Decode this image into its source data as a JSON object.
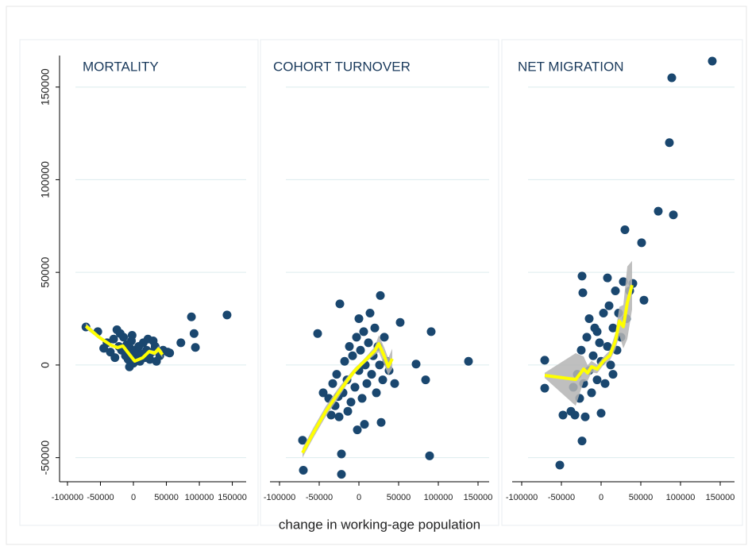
{
  "chart_data": [
    {
      "type": "scatter",
      "title": "MORTALITY",
      "xlim": [
        -112000,
        171000
      ],
      "ylim": [
        -63000,
        167000
      ],
      "xticks": [
        -100000,
        -50000,
        0,
        50000,
        100000,
        150000
      ],
      "yticks": [
        -50000,
        0,
        50000,
        100000,
        150000
      ],
      "grid": true,
      "points": {
        "color": "#1a476f",
        "x": [
          -72000,
          -54000,
          -45000,
          -40000,
          -35000,
          -30000,
          -25000,
          -22000,
          -20000,
          -18000,
          -15000,
          -12000,
          -10000,
          -8000,
          -5000,
          -3000,
          0,
          0,
          3000,
          5000,
          8000,
          10000,
          12000,
          15000,
          18000,
          20000,
          22000,
          25000,
          28000,
          30000,
          33000,
          35000,
          40000,
          45000,
          52000,
          55000,
          72000,
          88000,
          92000,
          94000,
          142000,
          -28000,
          -6000,
          -2000
        ],
        "y": [
          20500,
          18000,
          9000,
          12000,
          7000,
          14000,
          19000,
          10000,
          17000,
          8000,
          15000,
          5000,
          11000,
          3000,
          9000,
          13000,
          6000,
          1000,
          8000,
          3000,
          10000,
          2000,
          6000,
          12000,
          4000,
          8000,
          14000,
          3000,
          7000,
          13000,
          10000,
          2000,
          5000,
          8000,
          7000,
          6500,
          12000,
          26000,
          17000,
          9500,
          27000,
          4000,
          -1000,
          16000
        ]
      },
      "smooth": {
        "color": "#ffff00",
        "band_color": "#b4b4b4",
        "x": [
          -72000,
          -52000,
          -34000,
          -24000,
          -16000,
          -7500,
          2000,
          14000,
          24000,
          32000,
          38000,
          44000
        ],
        "y": [
          21000,
          15000,
          10700,
          9400,
          10300,
          6400,
          2100,
          3900,
          7300,
          6400,
          8600,
          5600
        ],
        "lower": [
          19500,
          14000,
          9800,
          8500,
          9500,
          5800,
          1500,
          3200,
          6300,
          5200,
          7000,
          3800
        ],
        "upper": [
          22500,
          16000,
          11600,
          10300,
          11100,
          7000,
          2700,
          4600,
          8300,
          7600,
          10200,
          7400
        ]
      }
    },
    {
      "type": "scatter",
      "title": "COHORT TURNOVER",
      "xlabel": "change in working-age population",
      "xlim": [
        -112000,
        164000
      ],
      "ylim": [
        -63000,
        167000
      ],
      "xticks": [
        -100000,
        -50000,
        0,
        50000,
        100000,
        150000
      ],
      "grid": true,
      "points": {
        "color": "#1a476f",
        "x": [
          -71000,
          -70000,
          -22000,
          -22000,
          89000,
          91000,
          138000,
          72000,
          84000,
          52000,
          -52000,
          -24000,
          27000,
          -45000,
          28000,
          7000,
          -38000,
          -33000,
          -30000,
          -28000,
          -25000,
          -20000,
          -18000,
          -15000,
          -12000,
          -10000,
          -8000,
          -5000,
          -3000,
          0,
          0,
          2000,
          4000,
          6000,
          8000,
          10000,
          12000,
          14000,
          16000,
          18000,
          20000,
          22000,
          24000,
          26000,
          30000,
          32000,
          35000,
          38000,
          -26000,
          -14000,
          -2000,
          45000,
          -35000
        ],
        "y": [
          -40600,
          -56800,
          -48000,
          -59000,
          -49000,
          18000,
          2000,
          500,
          -8000,
          23000,
          17000,
          33000,
          37500,
          -15000,
          -31000,
          -32000,
          -18000,
          -10000,
          -22000,
          -5000,
          -28000,
          -15000,
          2000,
          -8000,
          10000,
          -20000,
          5000,
          -12000,
          15000,
          -3000,
          25000,
          8000,
          -18000,
          18000,
          0,
          -10000,
          12000,
          28000,
          -5000,
          5000,
          20000,
          -15000,
          10000,
          0,
          -8000,
          15000,
          2000,
          -3000,
          -17000,
          -25000,
          -35000,
          -10000,
          -27000
        ]
      },
      "smooth": {
        "color": "#ffff00",
        "band_color": "#b4b4b4",
        "x": [
          -71000,
          -57000,
          -42000,
          -27000,
          -15000,
          -5000,
          5000,
          13000,
          20000,
          25000,
          32000,
          37000,
          42000
        ],
        "y": [
          -47400,
          -36300,
          -25200,
          -15800,
          -8500,
          -3000,
          1300,
          4700,
          7700,
          11500,
          4700,
          -900,
          3400
        ],
        "lower": [
          -50000,
          -39000,
          -28000,
          -18500,
          -10500,
          -4500,
          0,
          3000,
          5500,
          7000,
          0,
          -5500,
          -2000
        ],
        "upper": [
          -44800,
          -33600,
          -22400,
          -13100,
          -6500,
          -1500,
          2600,
          6400,
          9900,
          16000,
          9400,
          3700,
          8800
        ]
      }
    },
    {
      "type": "scatter",
      "title": "NET MIGRATION",
      "xlim": [
        -112000,
        168000
      ],
      "ylim": [
        -63000,
        167000
      ],
      "xticks": [
        -100000,
        -50000,
        0,
        50000,
        100000,
        150000
      ],
      "grid": true,
      "points": {
        "color": "#1a476f",
        "x": [
          140000,
          89000,
          86000,
          72000,
          91000,
          30000,
          51000,
          -71000,
          -71000,
          -52000,
          -24000,
          -24000,
          -23000,
          54000,
          -48000,
          -38000,
          -33000,
          0,
          8000,
          -35000,
          -30000,
          -27000,
          -25000,
          -22000,
          -18000,
          -15000,
          -15000,
          -12000,
          -10000,
          -8000,
          -5000,
          -2000,
          0,
          3000,
          5000,
          8000,
          10000,
          12000,
          15000,
          18000,
          20000,
          22000,
          25000,
          28000,
          32000,
          36000,
          40000,
          -20000,
          -5000,
          15000
        ],
        "y": [
          164000,
          155000,
          120000,
          83000,
          81000,
          73000,
          66000,
          2600,
          -12500,
          -54000,
          -41000,
          48000,
          39000,
          35000,
          -27000,
          -25000,
          -27000,
          -26000,
          47000,
          -12000,
          -5000,
          -18000,
          8000,
          -10000,
          15000,
          -3000,
          25000,
          -15000,
          5000,
          20000,
          -8000,
          12000,
          2000,
          28000,
          -10000,
          10000,
          32000,
          0,
          20000,
          40000,
          8000,
          28000,
          15000,
          45000,
          25000,
          40000,
          44000,
          -28000,
          18000,
          -5000
        ]
      },
      "smooth": {
        "color": "#ffff00",
        "band_color": "#b4b4b4",
        "x": [
          -71000,
          -32000,
          -22000,
          -17000,
          -12000,
          -5000,
          3000,
          11000,
          18000,
          23000,
          28000,
          33000,
          39000
        ],
        "y": [
          -5600,
          -7800,
          -2200,
          -4300,
          -900,
          -2200,
          2200,
          5200,
          12900,
          23700,
          20700,
          33600,
          43100
        ],
        "lower": [
          -7000,
          -22000,
          -9000,
          -8500,
          -4000,
          -4500,
          0,
          2500,
          8500,
          16000,
          9000,
          14000,
          30000
        ],
        "upper": [
          -4200,
          6400,
          4600,
          -100,
          2200,
          100,
          4400,
          7900,
          17300,
          31400,
          32400,
          53200,
          56200
        ]
      }
    }
  ]
}
